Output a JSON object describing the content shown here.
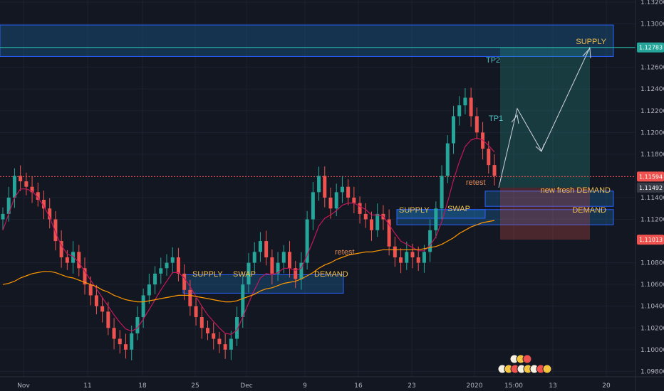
{
  "chart_data": {
    "type": "candlestick",
    "symbol_pair_colors": {
      "bull": "#26a69a",
      "bear": "#ef5350",
      "ma_fast": "#c2185b",
      "ma_slow": "#ff9800"
    },
    "y_range": [
      1.0975,
      1.1322
    ],
    "y_ticks": [
      "1.13200",
      "1.13000",
      "1.12600",
      "1.12400",
      "1.12200",
      "1.12000",
      "1.11800",
      "1.11400",
      "1.11200",
      "1.10800",
      "1.10600",
      "1.10400",
      "1.10200",
      "1.10000",
      "1.09800"
    ],
    "x_tick_labels": [
      "Nov",
      "11",
      "18",
      "25",
      "Dec",
      "9",
      "16",
      "23",
      "2020",
      "15:00",
      "13",
      "20"
    ],
    "price_tags": [
      {
        "value": 1.12783,
        "text": "1.12783",
        "color": "#26a69a"
      },
      {
        "value": 1.11594,
        "text": "1.11594",
        "color": "#ef5350"
      },
      {
        "value": 1.11492,
        "text": "1.11492",
        "color": "#363a45"
      },
      {
        "value": 1.11013,
        "text": "1.11013",
        "color": "#ef5350"
      }
    ],
    "closes": [
      1.1125,
      1.114,
      1.116,
      1.1155,
      1.115,
      1.1145,
      1.1138,
      1.113,
      1.112,
      1.11,
      1.1085,
      1.108,
      1.109,
      1.1075,
      1.106,
      1.105,
      1.104,
      1.1035,
      1.102,
      1.101,
      1.1005,
      1.1,
      1.1015,
      1.103,
      1.105,
      1.106,
      1.107,
      1.1075,
      1.108,
      1.1085,
      1.107,
      1.1055,
      1.104,
      1.103,
      1.102,
      1.1015,
      1.101,
      1.1005,
      1.1,
      1.101,
      1.103,
      1.106,
      1.108,
      1.109,
      1.11,
      1.1085,
      1.107,
      1.108,
      1.109,
      1.1075,
      1.1065,
      1.108,
      1.112,
      1.1145,
      1.116,
      1.114,
      1.113,
      1.1145,
      1.115,
      1.114,
      1.1135,
      1.1125,
      1.112,
      1.111,
      1.1125,
      1.112,
      1.1095,
      1.1085,
      1.108,
      1.109,
      1.1085,
      1.108,
      1.109,
      1.111,
      1.113,
      1.116,
      1.119,
      1.1215,
      1.1225,
      1.1232,
      1.1215,
      1.12,
      1.1185,
      1.117,
      1.116
    ],
    "ma_fast": [
      1.111,
      1.1125,
      1.114,
      1.1148,
      1.1148,
      1.1146,
      1.114,
      1.1132,
      1.1122,
      1.1108,
      1.1096,
      1.1088,
      1.1086,
      1.108,
      1.1072,
      1.1064,
      1.1056,
      1.1048,
      1.104,
      1.1032,
      1.1025,
      1.1019,
      1.1017,
      1.102,
      1.1028,
      1.1037,
      1.1046,
      1.1055,
      1.1063,
      1.1071,
      1.1071,
      1.1066,
      1.1058,
      1.1049,
      1.104,
      1.1032,
      1.1026,
      1.102,
      1.1015,
      1.1014,
      1.1018,
      1.103,
      1.1043,
      1.1055,
      1.1066,
      1.107,
      1.1069,
      1.1071,
      1.1075,
      1.1075,
      1.1073,
      1.1075,
      1.1087,
      1.11,
      1.1114,
      1.1121,
      1.1124,
      1.1128,
      1.1133,
      1.1135,
      1.1135,
      1.1132,
      1.1129,
      1.1124,
      1.1124,
      1.1123,
      1.1115,
      1.1107,
      1.11,
      1.1097,
      1.1094,
      1.1091,
      1.1091,
      1.1096,
      1.1104,
      1.1118,
      1.1136,
      1.1156,
      1.1173,
      1.1187,
      1.1193,
      1.1195,
      1.1193,
      1.1188,
      1.1182
    ],
    "ma_slow": [
      1.106,
      1.1061,
      1.1063,
      1.1066,
      1.1068,
      1.107,
      1.1071,
      1.1072,
      1.1072,
      1.1071,
      1.1069,
      1.1067,
      1.1066,
      1.1064,
      1.1062,
      1.106,
      1.1058,
      1.1055,
      1.1053,
      1.105,
      1.1048,
      1.1046,
      1.1045,
      1.1044,
      1.1044,
      1.1045,
      1.1046,
      1.1047,
      1.1048,
      1.1049,
      1.105,
      1.105,
      1.105,
      1.1049,
      1.1048,
      1.1047,
      1.1046,
      1.1045,
      1.1044,
      1.1044,
      1.1045,
      1.1047,
      1.1049,
      1.1051,
      1.1054,
      1.1056,
      1.1057,
      1.1059,
      1.1061,
      1.1062,
      1.1063,
      1.1065,
      1.1068,
      1.1071,
      1.1075,
      1.1078,
      1.108,
      1.1083,
      1.1085,
      1.1087,
      1.1088,
      1.1089,
      1.109,
      1.109,
      1.1091,
      1.1092,
      1.1092,
      1.1092,
      1.1092,
      1.1092,
      1.1092,
      1.1092,
      1.1093,
      1.1094,
      1.1095,
      1.1097,
      1.11,
      1.1103,
      1.1107,
      1.111,
      1.1113,
      1.1115,
      1.1117,
      1.1118,
      1.1119
    ],
    "zones": [
      {
        "label": "SUPPLY",
        "top": 1.1299,
        "bottom": 1.127
      },
      {
        "label": "new fresh DEMAND",
        "top": 1.1146,
        "bottom": 1.1132
      },
      {
        "label": "DEMAND",
        "top": 1.1129,
        "bottom": 1.1115
      },
      {
        "label_left": "SUPPLY",
        "label_right": "SWAP",
        "top": 1.1129,
        "bottom": 1.1121
      },
      {
        "label_left": "SUPPLY",
        "label_mid": "SWAP",
        "label_right": "DEMAND",
        "top": 1.1069,
        "bottom": 1.1052
      }
    ],
    "annotations": {
      "tp2": "TP2",
      "tp1": "TP1",
      "retest_1": "retest",
      "retest_2": "retest"
    },
    "position": {
      "entry": 1.11492,
      "target": 1.12783,
      "stop": 1.11013
    },
    "projection_prices": [
      1.11492,
      1.1222,
      1.1183,
      1.12783
    ]
  }
}
